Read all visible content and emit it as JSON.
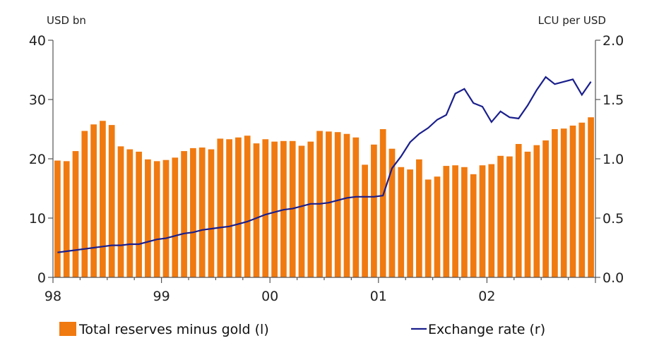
{
  "chart_data": {
    "type": "bar+line",
    "left_axis_label": "USD bn",
    "right_axis_label": "LCU per USD",
    "left_ylim": [
      0,
      40
    ],
    "left_ticks": [
      "0",
      "10",
      "20",
      "30",
      "40"
    ],
    "right_ylim": [
      0.0,
      2.0
    ],
    "right_ticks": [
      "0.0",
      "0.5",
      "1.0",
      "1.5",
      "2.0"
    ],
    "x_tick_labels": [
      "98",
      "99",
      "00",
      "01",
      "02"
    ],
    "x_start": "1998-01",
    "x_end": "2002-12",
    "grid": false,
    "legend_position": "bottom",
    "series": [
      {
        "name": "Total reserves minus gold (l)",
        "kind": "bar",
        "axis": "left",
        "color": "#f07a10",
        "values": [
          19.7,
          19.6,
          21.3,
          24.7,
          25.8,
          26.4,
          25.7,
          22.1,
          21.6,
          21.2,
          19.9,
          19.6,
          19.8,
          20.2,
          21.3,
          21.8,
          21.9,
          21.6,
          23.4,
          23.3,
          23.6,
          23.9,
          22.6,
          23.3,
          22.9,
          23.0,
          23.0,
          22.2,
          22.9,
          24.7,
          24.6,
          24.5,
          24.2,
          23.6,
          19.0,
          22.4,
          25.0,
          21.7,
          18.6,
          18.2,
          19.9,
          16.5,
          17.0,
          18.8,
          18.9,
          18.6,
          17.4,
          18.9,
          19.1,
          20.5,
          20.4,
          22.5,
          21.2,
          22.3,
          23.1,
          25.0,
          25.1,
          25.6,
          26.1,
          27.0
        ]
      },
      {
        "name": "Exchange rate (r)",
        "kind": "line",
        "axis": "right",
        "color": "#1a1f8c",
        "values": [
          0.21,
          0.22,
          0.23,
          0.24,
          0.25,
          0.26,
          0.27,
          0.27,
          0.28,
          0.28,
          0.3,
          0.32,
          0.33,
          0.35,
          0.37,
          0.38,
          0.4,
          0.41,
          0.42,
          0.43,
          0.45,
          0.47,
          0.5,
          0.53,
          0.55,
          0.57,
          0.58,
          0.6,
          0.62,
          0.62,
          0.63,
          0.65,
          0.67,
          0.68,
          0.68,
          0.68,
          0.69,
          0.92,
          1.02,
          1.14,
          1.21,
          1.26,
          1.33,
          1.37,
          1.55,
          1.59,
          1.47,
          1.44,
          1.31,
          1.4,
          1.35,
          1.34,
          1.45,
          1.58,
          1.69,
          1.63,
          1.65,
          1.67,
          1.54,
          1.65
        ]
      }
    ]
  }
}
